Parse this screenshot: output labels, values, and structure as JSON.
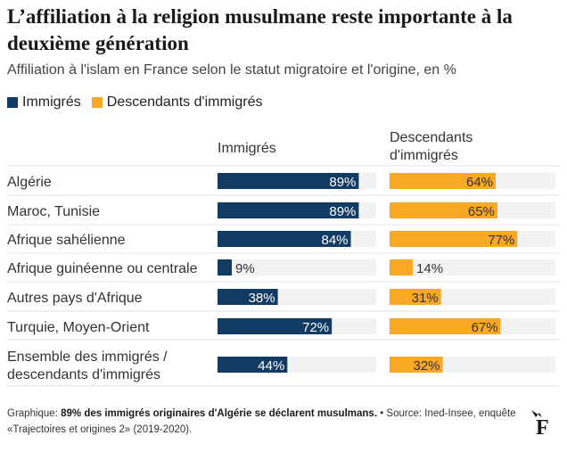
{
  "header": {
    "title": "L’affiliation à la religion musulmane reste importante à la deuxième génération",
    "subtitle": "Affiliation à l'islam en France selon le statut migratoire et l'origine, en %"
  },
  "legend": [
    {
      "label": "Immigrés",
      "color": "#123b63"
    },
    {
      "label": "Descendants d'immigrés",
      "color": "#f9a825"
    }
  ],
  "columns": {
    "immigres": "Immigrés",
    "descendants": "Descendants d'immigrés"
  },
  "chart_data": {
    "type": "bar",
    "orientation": "horizontal",
    "title": "L’affiliation à la religion musulmane reste importante à la deuxième génération",
    "subtitle": "Affiliation à l'islam en France selon le statut migratoire et l'origine, en %",
    "categories": [
      "Algérie",
      "Maroc, Tunisie",
      "Afrique sahélienne",
      "Afrique guinéenne ou centrale",
      "Autres pays d'Afrique",
      "Turquie, Moyen-Orient",
      "Ensemble des immigrés / descendants d'immigrés"
    ],
    "category_lines": [
      [
        "Algérie"
      ],
      [
        "Maroc, Tunisie"
      ],
      [
        "Afrique sahélienne"
      ],
      [
        "Afrique guinéenne ou centrale"
      ],
      [
        "Autres pays d'Afrique"
      ],
      [
        "Turquie, Moyen-Orient"
      ],
      [
        "Ensemble des immigrés /",
        "descendants d'immigrés"
      ]
    ],
    "series": [
      {
        "name": "Immigrés",
        "color": "#123b63",
        "values": [
          89,
          89,
          84,
          9,
          38,
          72,
          44
        ]
      },
      {
        "name": "Descendants d'immigrés",
        "color": "#f9a825",
        "values": [
          64,
          65,
          77,
          14,
          31,
          67,
          32
        ]
      }
    ],
    "xlim": [
      0,
      100
    ],
    "value_suffix": "%"
  },
  "footer": {
    "prefix": "Graphique: ",
    "highlight": "89% des immigrés originaires d'Algérie se déclarent musulmans.",
    "source": " • Source: Ined-Insee, enquête «Trajectoires et origines 2» (2019-2020)."
  },
  "brand": {
    "logo_letter": "F"
  }
}
